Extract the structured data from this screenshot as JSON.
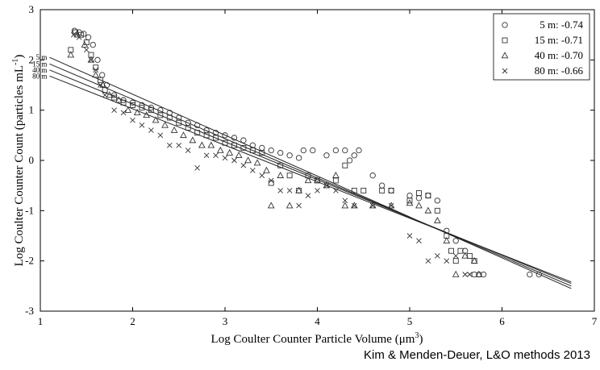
{
  "colors": {
    "axis": "#000000",
    "markers": "#333333",
    "lines": "#222222"
  },
  "credit": "Kim & Menden-Deuer, L&O methods 2013",
  "chart_data": {
    "type": "scatter",
    "xlabel_main": "Log Coulter Counter Particle Volume (",
    "xlabel_unit": "μm",
    "xlabel_exp": "3",
    "xlabel_end": ")",
    "ylabel_main": "Log Coulter Counter Count (particles mL",
    "ylabel_exp": "-1",
    "ylabel_end": ")",
    "xlim": [
      1,
      7
    ],
    "ylim": [
      -3,
      3
    ],
    "xticks": [
      "1",
      "2",
      "3",
      "4",
      "5",
      "6",
      "7"
    ],
    "yticks": [
      "-3",
      "-2",
      "-1",
      "0",
      "1",
      "2",
      "3"
    ],
    "legend_position": "top-right",
    "legend": [
      {
        "marker": "circle",
        "label": "5 m: -0.74"
      },
      {
        "marker": "square",
        "label": "15 m: -0.71"
      },
      {
        "marker": "triangle",
        "label": "40 m: -0.70"
      },
      {
        "marker": "x",
        "label": "80 m: -0.66"
      }
    ],
    "series": [
      {
        "marker": "circle",
        "line_label": "5 m",
        "fit": {
          "x0": 1.1,
          "y0": 2.05,
          "x1": 6.75,
          "y1": -2.55
        },
        "points": [
          [
            1.37,
            2.58
          ],
          [
            1.42,
            2.55
          ],
          [
            1.47,
            2.52
          ],
          [
            1.52,
            2.45
          ],
          [
            1.57,
            2.3
          ],
          [
            1.62,
            2.0
          ],
          [
            1.67,
            1.7
          ],
          [
            1.72,
            1.5
          ],
          [
            1.8,
            1.3
          ],
          [
            1.9,
            1.2
          ],
          [
            2.0,
            1.15
          ],
          [
            2.1,
            1.1
          ],
          [
            2.2,
            1.05
          ],
          [
            2.3,
            1.0
          ],
          [
            2.4,
            0.95
          ],
          [
            2.5,
            0.85
          ],
          [
            2.6,
            0.75
          ],
          [
            2.7,
            0.7
          ],
          [
            2.8,
            0.6
          ],
          [
            2.9,
            0.55
          ],
          [
            3.0,
            0.5
          ],
          [
            3.1,
            0.45
          ],
          [
            3.2,
            0.4
          ],
          [
            3.3,
            0.3
          ],
          [
            3.4,
            0.25
          ],
          [
            3.5,
            0.2
          ],
          [
            3.6,
            0.15
          ],
          [
            3.7,
            0.1
          ],
          [
            3.8,
            0.05
          ],
          [
            3.85,
            0.2
          ],
          [
            3.95,
            0.2
          ],
          [
            4.1,
            0.1
          ],
          [
            4.2,
            0.2
          ],
          [
            4.3,
            0.2
          ],
          [
            4.35,
            0.0
          ],
          [
            4.4,
            0.1
          ],
          [
            4.45,
            0.2
          ],
          [
            4.6,
            -0.3
          ],
          [
            4.7,
            -0.5
          ],
          [
            4.8,
            -0.6
          ],
          [
            5.0,
            -0.7
          ],
          [
            5.1,
            -0.75
          ],
          [
            5.2,
            -0.7
          ],
          [
            5.3,
            -0.8
          ],
          [
            5.4,
            -1.4
          ],
          [
            5.5,
            -1.6
          ],
          [
            5.6,
            -1.8
          ],
          [
            5.7,
            -2.27
          ],
          [
            5.75,
            -2.27
          ],
          [
            5.8,
            -2.27
          ],
          [
            6.3,
            -2.27
          ],
          [
            6.4,
            -2.27
          ]
        ]
      },
      {
        "marker": "square",
        "line_label": "15 m",
        "fit": {
          "x0": 1.1,
          "y0": 1.92,
          "x1": 6.75,
          "y1": -2.5
        },
        "points": [
          [
            1.33,
            2.2
          ],
          [
            1.38,
            2.55
          ],
          [
            1.44,
            2.5
          ],
          [
            1.5,
            2.35
          ],
          [
            1.55,
            2.1
          ],
          [
            1.6,
            1.85
          ],
          [
            1.65,
            1.6
          ],
          [
            1.7,
            1.4
          ],
          [
            1.8,
            1.25
          ],
          [
            1.9,
            1.15
          ],
          [
            2.0,
            1.1
          ],
          [
            2.1,
            1.05
          ],
          [
            2.2,
            1.0
          ],
          [
            2.3,
            0.9
          ],
          [
            2.4,
            0.85
          ],
          [
            2.5,
            0.75
          ],
          [
            2.6,
            0.65
          ],
          [
            2.7,
            0.55
          ],
          [
            2.8,
            0.5
          ],
          [
            2.9,
            0.45
          ],
          [
            3.0,
            0.35
          ],
          [
            3.1,
            0.3
          ],
          [
            3.2,
            0.25
          ],
          [
            3.3,
            0.2
          ],
          [
            3.4,
            0.15
          ],
          [
            3.5,
            -0.45
          ],
          [
            3.6,
            -0.1
          ],
          [
            3.7,
            -0.3
          ],
          [
            3.8,
            -0.6
          ],
          [
            3.9,
            -0.3
          ],
          [
            4.0,
            -0.4
          ],
          [
            4.2,
            -0.4
          ],
          [
            4.3,
            -0.1
          ],
          [
            4.4,
            -0.6
          ],
          [
            4.5,
            -0.6
          ],
          [
            4.7,
            -0.6
          ],
          [
            4.8,
            -0.6
          ],
          [
            5.0,
            -0.8
          ],
          [
            5.1,
            -0.65
          ],
          [
            5.2,
            -0.7
          ],
          [
            5.3,
            -1.0
          ],
          [
            5.4,
            -1.5
          ],
          [
            5.45,
            -1.8
          ],
          [
            5.5,
            -2.0
          ],
          [
            5.55,
            -1.8
          ],
          [
            5.65,
            -1.9
          ],
          [
            5.7,
            -2.0
          ]
        ]
      },
      {
        "marker": "triangle",
        "line_label": "40 m",
        "fit": {
          "x0": 1.1,
          "y0": 1.8,
          "x1": 6.75,
          "y1": -2.45
        },
        "points": [
          [
            1.33,
            2.1
          ],
          [
            1.4,
            2.5
          ],
          [
            1.48,
            2.3
          ],
          [
            1.55,
            2.0
          ],
          [
            1.6,
            1.7
          ],
          [
            1.68,
            1.5
          ],
          [
            1.75,
            1.3
          ],
          [
            1.85,
            1.2
          ],
          [
            1.95,
            1.0
          ],
          [
            2.05,
            0.95
          ],
          [
            2.15,
            0.9
          ],
          [
            2.25,
            0.8
          ],
          [
            2.35,
            0.7
          ],
          [
            2.45,
            0.6
          ],
          [
            2.55,
            0.5
          ],
          [
            2.65,
            0.4
          ],
          [
            2.75,
            0.3
          ],
          [
            2.85,
            0.3
          ],
          [
            2.95,
            0.2
          ],
          [
            3.05,
            0.15
          ],
          [
            3.15,
            0.1
          ],
          [
            3.25,
            0.0
          ],
          [
            3.35,
            -0.05
          ],
          [
            3.45,
            -0.2
          ],
          [
            3.5,
            -0.9
          ],
          [
            3.6,
            -0.3
          ],
          [
            3.7,
            -0.9
          ],
          [
            3.8,
            -0.6
          ],
          [
            3.9,
            -0.4
          ],
          [
            4.0,
            -0.4
          ],
          [
            4.1,
            -0.5
          ],
          [
            4.2,
            -0.3
          ],
          [
            4.3,
            -0.9
          ],
          [
            4.4,
            -0.9
          ],
          [
            4.6,
            -0.9
          ],
          [
            4.8,
            -0.9
          ],
          [
            5.0,
            -0.85
          ],
          [
            5.1,
            -0.9
          ],
          [
            5.2,
            -1.0
          ],
          [
            5.3,
            -1.2
          ],
          [
            5.4,
            -1.6
          ],
          [
            5.5,
            -2.27
          ],
          [
            5.6,
            -1.9
          ],
          [
            5.7,
            -2.0
          ],
          [
            5.75,
            -2.27
          ]
        ]
      },
      {
        "marker": "x",
        "line_label": "80 m",
        "fit": {
          "x0": 1.1,
          "y0": 1.68,
          "x1": 6.75,
          "y1": -2.42
        },
        "points": [
          [
            1.36,
            2.5
          ],
          [
            1.42,
            2.45
          ],
          [
            1.5,
            2.2
          ],
          [
            1.55,
            2.0
          ],
          [
            1.6,
            1.8
          ],
          [
            1.65,
            1.5
          ],
          [
            1.7,
            1.3
          ],
          [
            1.8,
            1.0
          ],
          [
            1.9,
            0.95
          ],
          [
            2.0,
            0.8
          ],
          [
            2.1,
            0.7
          ],
          [
            2.2,
            0.6
          ],
          [
            2.3,
            0.5
          ],
          [
            2.4,
            0.3
          ],
          [
            2.5,
            0.3
          ],
          [
            2.6,
            0.2
          ],
          [
            2.7,
            -0.15
          ],
          [
            2.8,
            0.1
          ],
          [
            2.9,
            0.1
          ],
          [
            3.0,
            0.05
          ],
          [
            3.1,
            0.0
          ],
          [
            3.2,
            -0.1
          ],
          [
            3.3,
            -0.2
          ],
          [
            3.4,
            -0.3
          ],
          [
            3.5,
            -0.4
          ],
          [
            3.6,
            -0.6
          ],
          [
            3.7,
            -0.6
          ],
          [
            3.8,
            -0.9
          ],
          [
            3.9,
            -0.7
          ],
          [
            4.0,
            -0.6
          ],
          [
            4.1,
            -0.5
          ],
          [
            4.2,
            -0.6
          ],
          [
            4.3,
            -0.8
          ],
          [
            4.4,
            -0.9
          ],
          [
            4.6,
            -0.9
          ],
          [
            4.8,
            -0.9
          ],
          [
            5.0,
            -1.5
          ],
          [
            5.1,
            -1.6
          ],
          [
            5.2,
            -2.0
          ],
          [
            5.3,
            -1.9
          ],
          [
            5.4,
            -2.0
          ],
          [
            5.5,
            -1.9
          ],
          [
            5.6,
            -2.27
          ],
          [
            5.65,
            -2.27
          ]
        ]
      }
    ]
  }
}
